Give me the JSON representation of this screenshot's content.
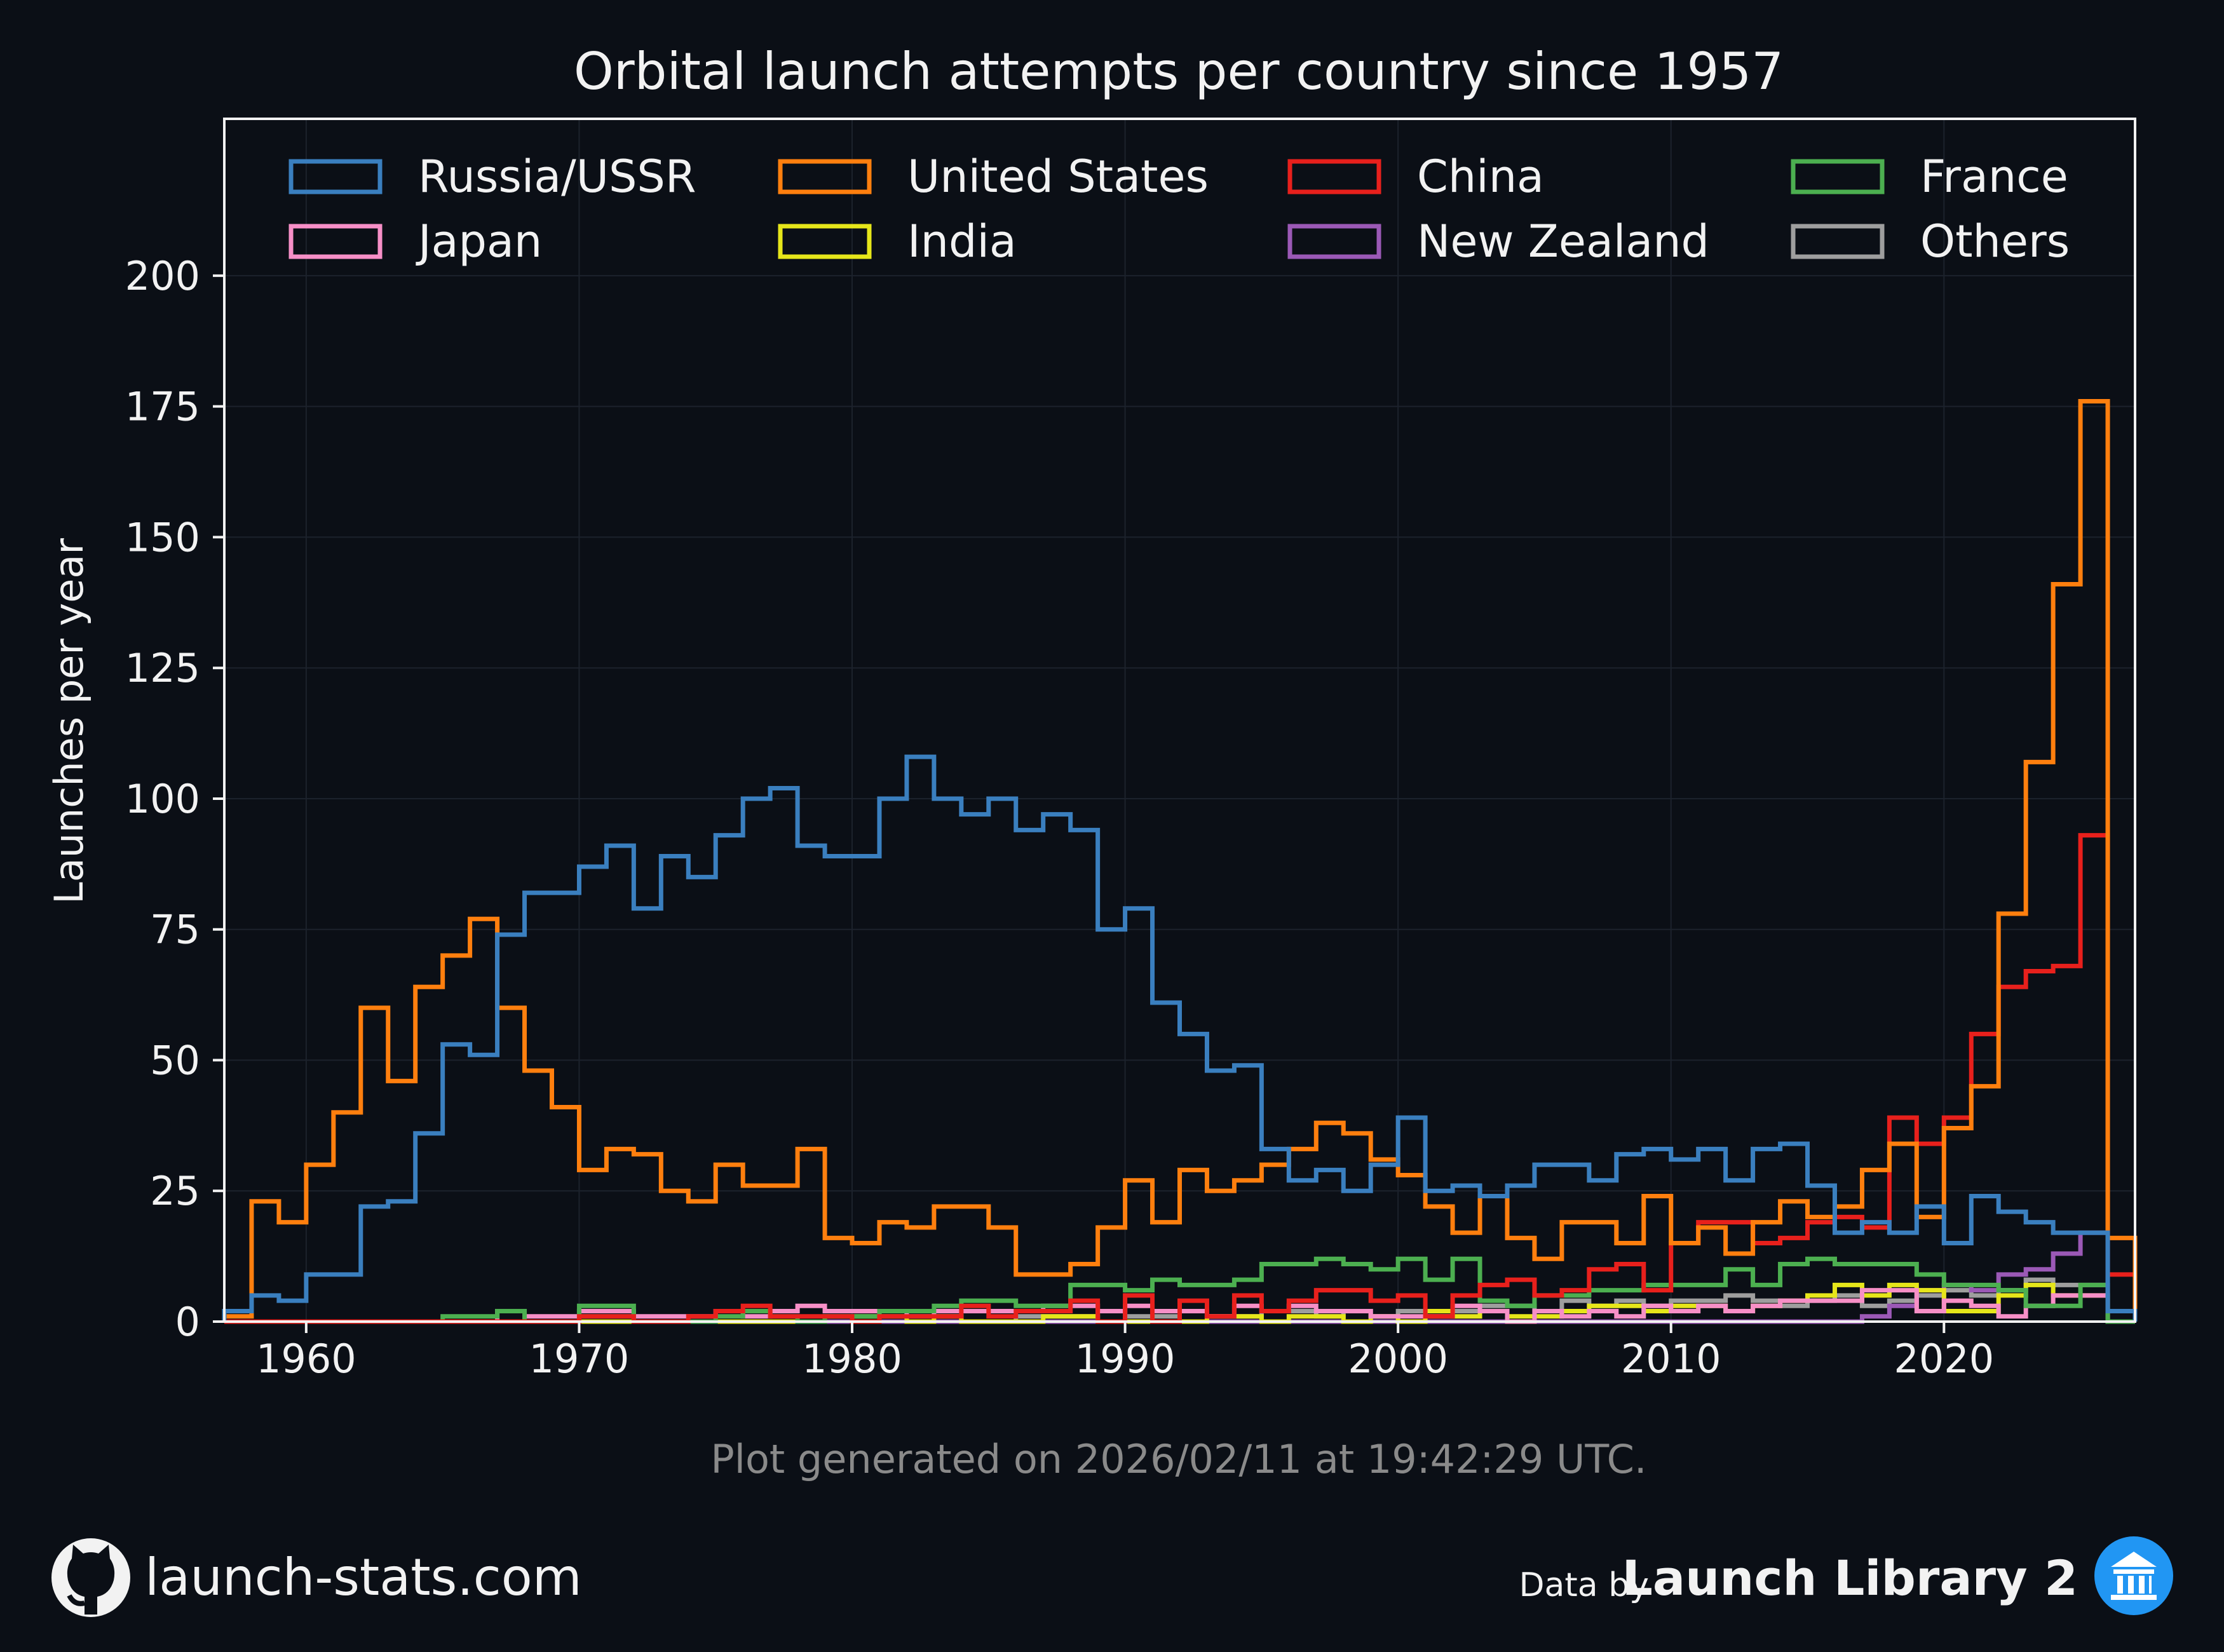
{
  "chart_data": {
    "type": "line",
    "step": true,
    "title": "Orbital launch attempts per country since 1957",
    "ylabel": "Launches per year",
    "xlabel": "",
    "xlim": [
      1957,
      2027
    ],
    "ylim": [
      0,
      230
    ],
    "xticks": [
      1960,
      1970,
      1980,
      1990,
      2000,
      2010,
      2020
    ],
    "yticks": [
      0,
      25,
      50,
      75,
      100,
      125,
      150,
      175,
      200
    ],
    "grid": true,
    "legend": "top, 4 columns",
    "x": [
      1957,
      1958,
      1959,
      1960,
      1961,
      1962,
      1963,
      1964,
      1965,
      1966,
      1967,
      1968,
      1969,
      1970,
      1971,
      1972,
      1973,
      1974,
      1975,
      1976,
      1977,
      1978,
      1979,
      1980,
      1981,
      1982,
      1983,
      1984,
      1985,
      1986,
      1987,
      1988,
      1989,
      1990,
      1991,
      1992,
      1993,
      1994,
      1995,
      1996,
      1997,
      1998,
      1999,
      2000,
      2001,
      2002,
      2003,
      2004,
      2005,
      2006,
      2007,
      2008,
      2009,
      2010,
      2011,
      2012,
      2013,
      2014,
      2015,
      2016,
      2017,
      2018,
      2019,
      2020,
      2021,
      2022,
      2023,
      2024,
      2025,
      2026
    ],
    "series": [
      {
        "name": "Russia/USSR",
        "color": "#3a7fbf",
        "values": [
          2,
          5,
          4,
          9,
          9,
          22,
          23,
          36,
          53,
          51,
          74,
          82,
          82,
          87,
          91,
          79,
          89,
          85,
          93,
          100,
          102,
          91,
          89,
          89,
          100,
          108,
          100,
          97,
          100,
          94,
          97,
          94,
          75,
          79,
          61,
          55,
          48,
          49,
          33,
          27,
          29,
          25,
          30,
          39,
          25,
          26,
          24,
          26,
          30,
          30,
          27,
          32,
          33,
          31,
          33,
          27,
          33,
          34,
          26,
          17,
          19,
          17,
          22,
          15,
          24,
          21,
          19,
          17,
          17,
          2
        ]
      },
      {
        "name": "United States",
        "color": "#ff7f0e",
        "values": [
          1,
          23,
          19,
          30,
          40,
          60,
          46,
          64,
          70,
          77,
          60,
          48,
          41,
          29,
          33,
          32,
          25,
          23,
          30,
          26,
          26,
          33,
          16,
          15,
          19,
          18,
          22,
          22,
          18,
          9,
          9,
          11,
          18,
          27,
          19,
          29,
          25,
          27,
          30,
          33,
          38,
          36,
          31,
          28,
          22,
          17,
          24,
          16,
          12,
          19,
          19,
          15,
          24,
          15,
          18,
          13,
          19,
          23,
          20,
          22,
          29,
          34,
          20,
          37,
          45,
          78,
          107,
          141,
          176,
          16
        ]
      },
      {
        "name": "China",
        "color": "#e8201c",
        "values": [
          0,
          0,
          0,
          0,
          0,
          0,
          0,
          0,
          0,
          0,
          0,
          0,
          0,
          1,
          1,
          0,
          0,
          1,
          2,
          3,
          1,
          1,
          1,
          0,
          1,
          1,
          1,
          3,
          1,
          2,
          2,
          4,
          0,
          5,
          0,
          4,
          1,
          5,
          2,
          4,
          6,
          6,
          4,
          5,
          1,
          5,
          7,
          8,
          5,
          6,
          10,
          11,
          6,
          15,
          19,
          19,
          15,
          16,
          19,
          20,
          18,
          39,
          34,
          39,
          55,
          64,
          67,
          68,
          93,
          9
        ]
      },
      {
        "name": "France",
        "color": "#4caf50",
        "values": [
          0,
          0,
          0,
          0,
          0,
          0,
          0,
          0,
          1,
          1,
          2,
          0,
          0,
          3,
          3,
          0,
          0,
          0,
          1,
          2,
          1,
          0,
          1,
          1,
          2,
          2,
          3,
          4,
          4,
          3,
          3,
          7,
          7,
          6,
          8,
          7,
          7,
          8,
          11,
          11,
          12,
          11,
          10,
          12,
          8,
          12,
          4,
          3,
          5,
          5,
          6,
          6,
          7,
          7,
          7,
          10,
          7,
          11,
          12,
          11,
          11,
          11,
          9,
          7,
          7,
          6,
          3,
          3,
          7,
          0
        ]
      },
      {
        "name": "Japan",
        "color": "#f78fc7",
        "values": [
          0,
          0,
          0,
          0,
          0,
          0,
          0,
          0,
          0,
          0,
          2,
          1,
          1,
          2,
          2,
          1,
          1,
          1,
          2,
          1,
          2,
          3,
          2,
          2,
          2,
          1,
          2,
          2,
          2,
          2,
          3,
          3,
          2,
          3,
          2,
          2,
          1,
          3,
          2,
          3,
          2,
          2,
          1,
          1,
          1,
          3,
          2,
          0,
          2,
          1,
          2,
          1,
          3,
          2,
          3,
          2,
          3,
          4,
          4,
          4,
          6,
          6,
          2,
          4,
          3,
          1,
          3,
          5,
          5,
          0
        ]
      },
      {
        "name": "India",
        "color": "#e6e61a",
        "values": [
          0,
          0,
          0,
          0,
          0,
          0,
          0,
          0,
          0,
          0,
          0,
          0,
          0,
          0,
          0,
          0,
          0,
          0,
          0,
          0,
          0,
          0,
          1,
          1,
          1,
          0,
          1,
          0,
          0,
          0,
          1,
          1,
          0,
          0,
          0,
          0,
          1,
          1,
          0,
          1,
          1,
          0,
          1,
          0,
          2,
          1,
          2,
          1,
          1,
          2,
          3,
          3,
          2,
          3,
          3,
          2,
          3,
          4,
          5,
          7,
          5,
          7,
          6,
          2,
          2,
          5,
          7,
          5,
          5,
          0
        ]
      },
      {
        "name": "New Zealand",
        "color": "#9b59b6",
        "values": [
          0,
          0,
          0,
          0,
          0,
          0,
          0,
          0,
          0,
          0,
          0,
          0,
          0,
          0,
          0,
          0,
          0,
          0,
          0,
          0,
          0,
          0,
          0,
          0,
          0,
          0,
          0,
          0,
          0,
          0,
          0,
          0,
          0,
          0,
          0,
          0,
          0,
          0,
          0,
          0,
          0,
          0,
          0,
          0,
          0,
          0,
          0,
          0,
          0,
          0,
          0,
          0,
          0,
          0,
          0,
          0,
          0,
          0,
          0,
          0,
          1,
          3,
          6,
          7,
          6,
          9,
          10,
          13,
          17,
          0
        ]
      },
      {
        "name": "Others",
        "color": "#9e9e9e",
        "values": [
          0,
          0,
          0,
          0,
          0,
          0,
          0,
          0,
          0,
          0,
          0,
          0,
          0,
          1,
          1,
          0,
          0,
          0,
          0,
          0,
          0,
          0,
          0,
          0,
          2,
          0,
          1,
          0,
          0,
          1,
          1,
          1,
          2,
          1,
          1,
          0,
          1,
          1,
          2,
          2,
          1,
          2,
          1,
          2,
          1,
          2,
          3,
          3,
          2,
          4,
          3,
          4,
          3,
          4,
          4,
          5,
          4,
          3,
          4,
          5,
          3,
          4,
          5,
          6,
          5,
          6,
          8,
          7,
          7,
          0
        ]
      }
    ]
  },
  "footnote": "Plot generated on 2026/02/11 at 19:42:29 UTC.",
  "footer": {
    "site": "launch-stats.com",
    "data_by": "Data by",
    "brand": "Launch Library 2",
    "site_icon": "github-icon",
    "brand_icon": "library-icon"
  },
  "colors": {
    "background": "#0b0f16",
    "frame": "#f2f2f2",
    "grid": "#1c222c"
  }
}
